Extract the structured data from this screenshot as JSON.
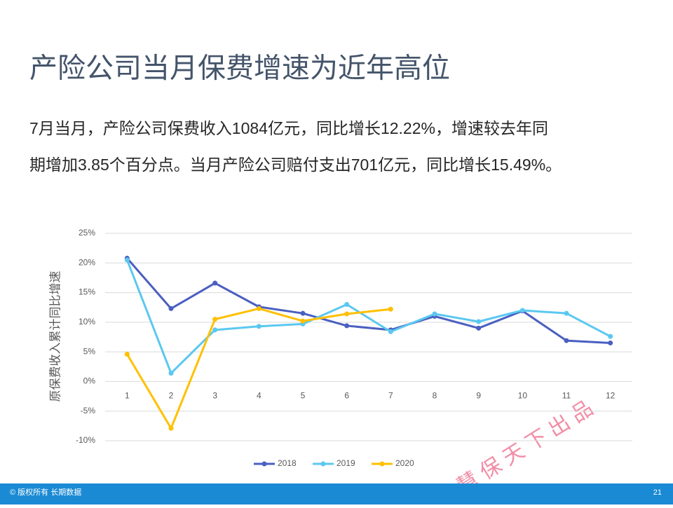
{
  "header": {
    "title": "产险公司当月保费增速为近年高位"
  },
  "body": {
    "lines": [
      "7月当月，产险公司保费收入1084亿元，同比增长12.22%，增速较去年同",
      "期增加3.85个百分点。当月产险公司赔付支出701亿元，同比增长15.49%。"
    ]
  },
  "chart_data": {
    "type": "line",
    "y_label": "原保费收入累计同比增速",
    "categories": [
      "1",
      "2",
      "3",
      "4",
      "5",
      "6",
      "7",
      "8",
      "9",
      "10",
      "11",
      "12"
    ],
    "series": [
      {
        "name": "2018",
        "color": "#4a5fc1",
        "values": [
          20.8,
          12.3,
          16.6,
          12.6,
          11.5,
          9.4,
          8.7,
          11.0,
          9.0,
          11.9,
          6.9,
          6.5
        ]
      },
      {
        "name": "2019",
        "color": "#5bc8f0",
        "values": [
          20.5,
          1.4,
          8.7,
          9.3,
          9.7,
          13.0,
          8.4,
          11.4,
          10.1,
          12.0,
          11.5,
          7.6
        ]
      },
      {
        "name": "2020",
        "color": "#ffc000",
        "values": [
          4.6,
          -7.9,
          10.5,
          12.3,
          10.2,
          11.4,
          12.2,
          null,
          null,
          null,
          null,
          null
        ]
      }
    ],
    "ylim": [
      -10,
      25
    ],
    "yticks": [
      {
        "value": -10,
        "label": "-10%"
      },
      {
        "value": -5,
        "label": "-5%"
      },
      {
        "value": 0,
        "label": "0%"
      },
      {
        "value": 5,
        "label": "5%"
      },
      {
        "value": 10,
        "label": "10%"
      },
      {
        "value": 15,
        "label": "15%"
      },
      {
        "value": 20,
        "label": "20%"
      },
      {
        "value": 25,
        "label": "25%"
      }
    ],
    "grid": true,
    "legend": "bottom"
  },
  "watermark": "慧 保 天 下 出 品",
  "footer": {
    "copyright": "© 版权所有 长期数据",
    "page": "21"
  }
}
